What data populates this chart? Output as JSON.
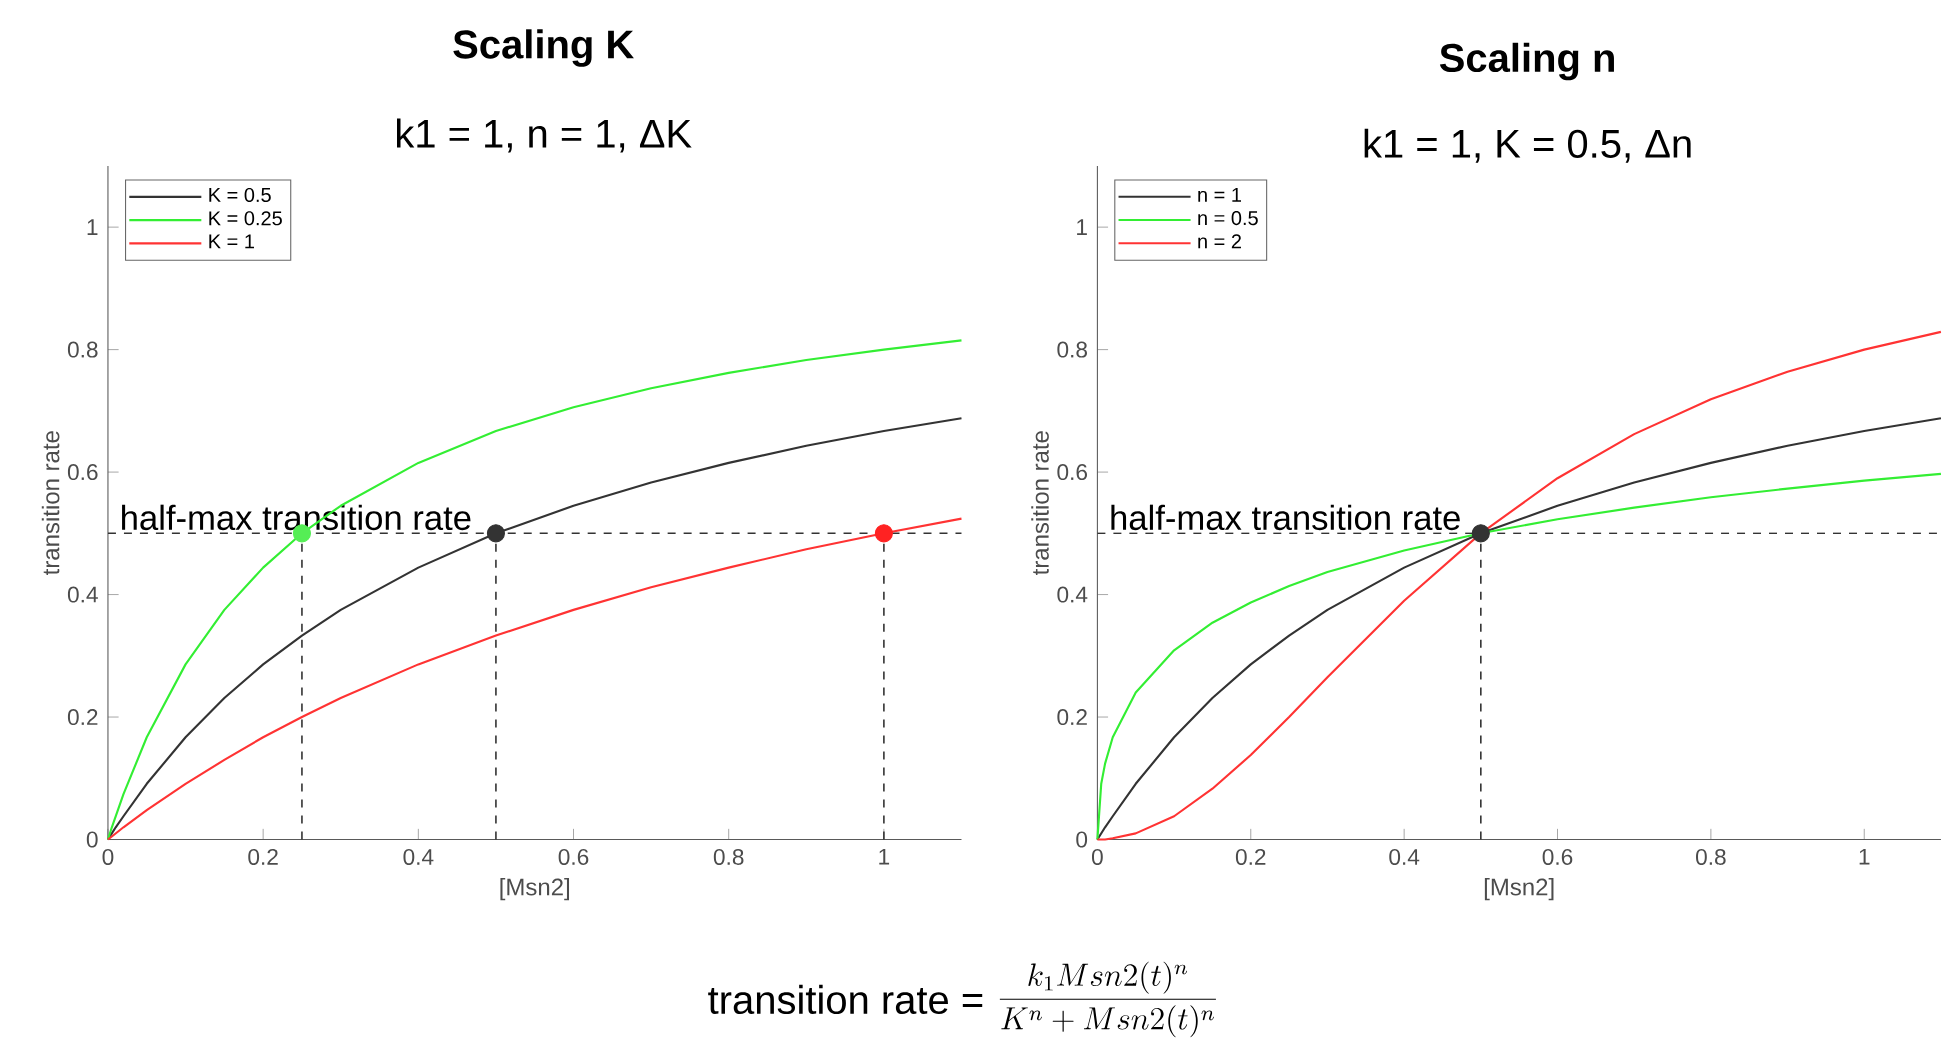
{
  "chart_data": [
    {
      "type": "line",
      "title": "Scaling K",
      "subtitle": "k1 = 1, n = 1, ΔK",
      "xlabel": "[Msn2]",
      "ylabel": "transition rate",
      "x": [
        0,
        0.005,
        0.01,
        0.02,
        0.05,
        0.1,
        0.15,
        0.2,
        0.25,
        0.3,
        0.4,
        0.5,
        0.6,
        0.7,
        0.8,
        0.9,
        1.0,
        1.1
      ],
      "series": [
        {
          "name": "K = 0.5",
          "color": "#333333",
          "values": [
            0,
            0.01,
            0.02,
            0.038,
            0.091,
            0.167,
            0.231,
            0.286,
            0.333,
            0.375,
            0.444,
            0.5,
            0.545,
            0.583,
            0.615,
            0.643,
            0.667,
            0.688
          ]
        },
        {
          "name": "K = 0.25",
          "color": "#33ee33",
          "values": [
            0,
            0.02,
            0.038,
            0.074,
            0.167,
            0.286,
            0.375,
            0.444,
            0.5,
            0.545,
            0.615,
            0.667,
            0.706,
            0.737,
            0.762,
            0.783,
            0.8,
            0.815
          ]
        },
        {
          "name": "K = 1",
          "color": "#ff3333",
          "values": [
            0,
            0.005,
            0.01,
            0.02,
            0.048,
            0.091,
            0.13,
            0.167,
            0.2,
            0.231,
            0.286,
            0.333,
            0.375,
            0.412,
            0.444,
            0.474,
            0.5,
            0.524
          ]
        },
        {
          "type": "scatter",
          "marker": "circle",
          "x": [
            0.25,
            0.5,
            1
          ],
          "values": [
            0.5,
            0.5,
            0.5
          ],
          "colors": [
            "#55ee55",
            "#333333",
            "#ff2222"
          ]
        }
      ],
      "xlim": [
        0,
        1.1
      ],
      "ylim": [
        0,
        1.1
      ],
      "xticks": [
        0,
        0.2,
        0.4,
        0.6,
        0.8,
        1
      ],
      "yticks": [
        0,
        0.2,
        0.4,
        0.6,
        0.8,
        1
      ],
      "legend": "top left",
      "ref_lines": [
        {
          "axis": "y",
          "value": 0.5,
          "label": "half-max transition rate",
          "color": "#333333",
          "line_style": "dashed"
        },
        {
          "axis": "x",
          "value": 0.25,
          "color": "#333333",
          "line_style": "dashed"
        },
        {
          "axis": "x",
          "value": 0.5,
          "color": "#333333",
          "line_style": "dashed"
        },
        {
          "axis": "x",
          "value": 1,
          "color": "#333333",
          "line_style": "dashed"
        }
      ]
    },
    {
      "type": "line",
      "title": "Scaling n",
      "subtitle": "k1 = 1, K = 0.5, Δn",
      "xlabel": "[Msn2]",
      "ylabel": "transition rate",
      "x": [
        0,
        0.005,
        0.01,
        0.02,
        0.05,
        0.1,
        0.15,
        0.2,
        0.25,
        0.3,
        0.4,
        0.5,
        0.6,
        0.7,
        0.8,
        0.9,
        1.0,
        1.1
      ],
      "series": [
        {
          "name": "n = 1",
          "color": "#333333",
          "values": [
            0,
            0.01,
            0.02,
            0.038,
            0.091,
            0.167,
            0.231,
            0.286,
            0.333,
            0.375,
            0.444,
            0.5,
            0.545,
            0.583,
            0.615,
            0.643,
            0.667,
            0.688
          ]
        },
        {
          "name": "n = 0.5",
          "color": "#33ee33",
          "values": [
            0,
            0.091,
            0.124,
            0.167,
            0.24,
            0.309,
            0.354,
            0.387,
            0.414,
            0.437,
            0.472,
            0.5,
            0.523,
            0.542,
            0.559,
            0.573,
            0.586,
            0.597
          ]
        },
        {
          "name": "n = 2",
          "color": "#ff3333",
          "values": [
            0,
            0,
            0,
            0.002,
            0.01,
            0.038,
            0.083,
            0.138,
            0.2,
            0.265,
            0.39,
            0.5,
            0.59,
            0.662,
            0.719,
            0.764,
            0.8,
            0.829
          ]
        },
        {
          "type": "scatter",
          "marker": "circle",
          "x": [
            0.5
          ],
          "values": [
            0.5
          ],
          "colors": [
            "#333333"
          ]
        }
      ],
      "xlim": [
        0,
        1.1
      ],
      "ylim": [
        0,
        1.1
      ],
      "xticks": [
        0,
        0.2,
        0.4,
        0.6,
        0.8,
        1
      ],
      "yticks": [
        0,
        0.2,
        0.4,
        0.6,
        0.8,
        1
      ],
      "legend": "top left",
      "ref_lines": [
        {
          "axis": "y",
          "value": 0.5,
          "label": "half-max transition rate",
          "color": "#333333",
          "line_style": "dashed"
        },
        {
          "axis": "x",
          "value": 0.5,
          "color": "#333333",
          "line_style": "dashed"
        }
      ],
      "annotations": [
        "transition rate =",
        "\\frac{k_1 Msn2(t)^n}{K^n + Msn2(t)^n}"
      ]
    }
  ]
}
